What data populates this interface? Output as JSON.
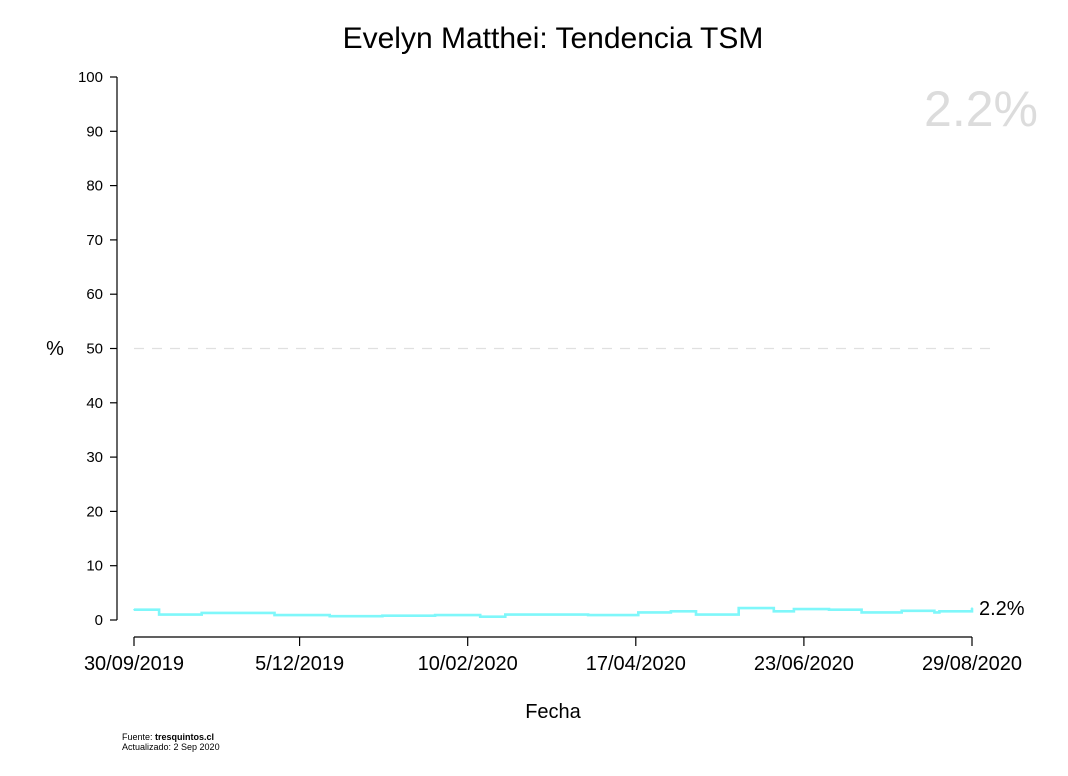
{
  "chart_data": {
    "type": "line",
    "title": "Evelyn Matthei: Tendencia TSM",
    "xlabel": "Fecha",
    "ylabel": "%",
    "ylim": [
      0,
      100
    ],
    "yticks": [
      0,
      10,
      20,
      30,
      40,
      50,
      60,
      70,
      80,
      90,
      100
    ],
    "xticks": [
      "30/09/2019",
      "5/12/2019",
      "10/02/2020",
      "17/04/2020",
      "23/06/2020",
      "29/08/2020"
    ],
    "reference_line": 50,
    "headline_value": "2.2%",
    "end_label": "2.2%",
    "series": [
      {
        "color": "#7ff7fa",
        "step": true,
        "points": [
          [
            "2019-09-30",
            1.9
          ],
          [
            "2019-10-10",
            1.0
          ],
          [
            "2019-10-27",
            1.3
          ],
          [
            "2019-11-25",
            0.9
          ],
          [
            "2019-12-17",
            0.7
          ],
          [
            "2020-01-07",
            0.8
          ],
          [
            "2020-01-28",
            0.9
          ],
          [
            "2020-02-15",
            0.6
          ],
          [
            "2020-02-25",
            1.0
          ],
          [
            "2020-03-10",
            1.0
          ],
          [
            "2020-03-29",
            0.9
          ],
          [
            "2020-04-18",
            1.4
          ],
          [
            "2020-05-01",
            1.6
          ],
          [
            "2020-05-11",
            1.0
          ],
          [
            "2020-05-28",
            2.2
          ],
          [
            "2020-06-11",
            1.6
          ],
          [
            "2020-06-19",
            2.0
          ],
          [
            "2020-07-03",
            1.9
          ],
          [
            "2020-07-16",
            1.4
          ],
          [
            "2020-08-01",
            1.7
          ],
          [
            "2020-08-14",
            1.4
          ],
          [
            "2020-08-16",
            1.6
          ],
          [
            "2020-08-29",
            2.2
          ]
        ]
      }
    ]
  },
  "footer": {
    "source_prefix": "Fuente: ",
    "source_name": "tresquintos.cl",
    "updated": "Actualizado: 2 Sep 2020"
  }
}
